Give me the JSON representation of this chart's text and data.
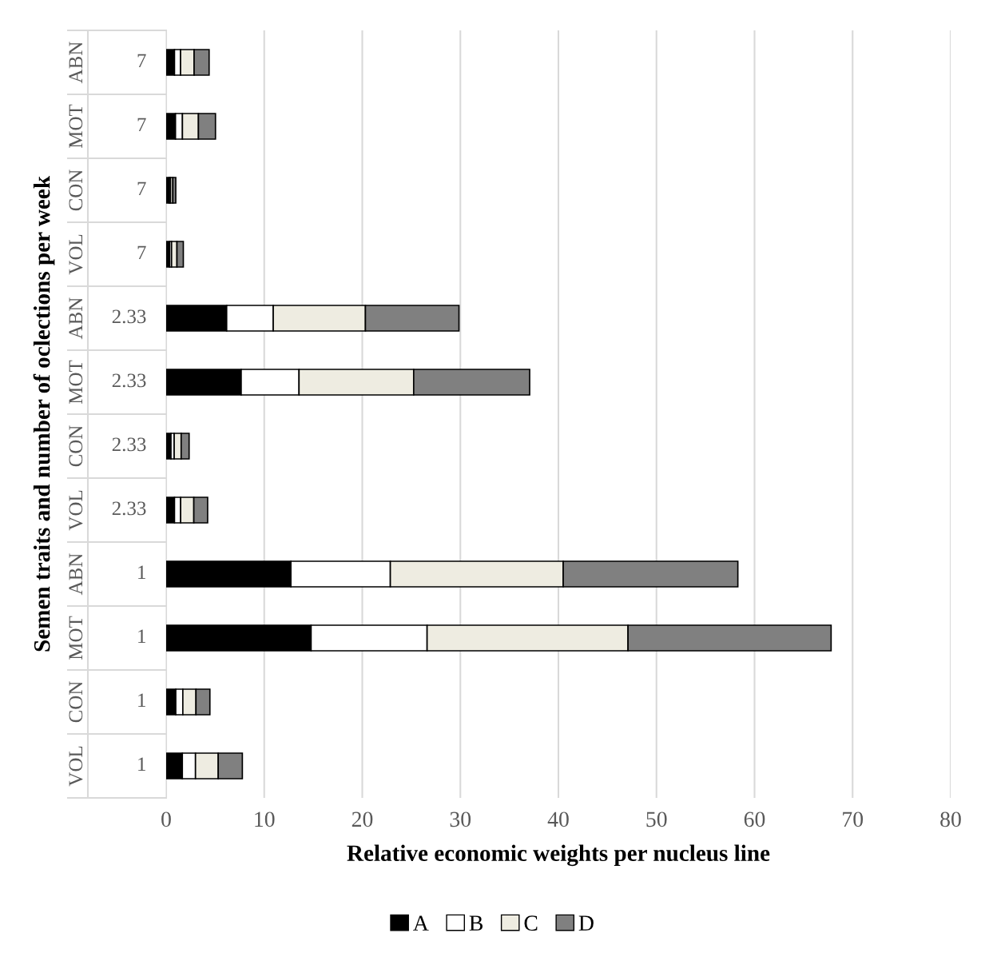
{
  "chart_data": {
    "type": "bar",
    "orientation": "horizontal",
    "stacked": true,
    "xlabel": "Relative economic weights per nucleus line",
    "ylabel": "Semen traits and number of oclections per week",
    "categories": [
      "ABN",
      "MOT",
      "CON",
      "VOL",
      "ABN",
      "MOT",
      "CON",
      "VOL",
      "ABN",
      "MOT",
      "CON",
      "VOL"
    ],
    "y2_categories": [
      "7",
      "7",
      "7",
      "7",
      "2.33",
      "2.33",
      "2.33",
      "2.33",
      "1",
      "1",
      "1",
      "1"
    ],
    "series": [
      {
        "name": "A",
        "color": "#000000",
        "values": [
          0.85,
          0.95,
          0.3,
          0.36,
          6.17,
          7.65,
          0.49,
          0.85,
          12.72,
          14.78,
          0.98,
          1.65
        ]
      },
      {
        "name": "B",
        "color": "#ffffff",
        "values": [
          0.62,
          0.71,
          0.14,
          0.19,
          4.75,
          5.9,
          0.33,
          0.63,
          10.14,
          11.83,
          0.72,
          1.34
        ]
      },
      {
        "name": "C",
        "color": "#eeece1",
        "values": [
          1.38,
          1.63,
          0.24,
          0.55,
          9.4,
          11.69,
          0.71,
          1.34,
          17.63,
          20.49,
          1.34,
          2.32
        ]
      },
      {
        "name": "D",
        "color": "#808080",
        "values": [
          1.53,
          1.74,
          0.3,
          0.65,
          9.54,
          11.83,
          0.81,
          1.41,
          17.81,
          20.71,
          1.42,
          2.46
        ]
      }
    ],
    "xlim": [
      0,
      80
    ],
    "xticks": [
      0,
      10,
      20,
      30,
      40,
      50,
      60,
      70,
      80
    ],
    "grid": "x",
    "legend": "bottom"
  }
}
